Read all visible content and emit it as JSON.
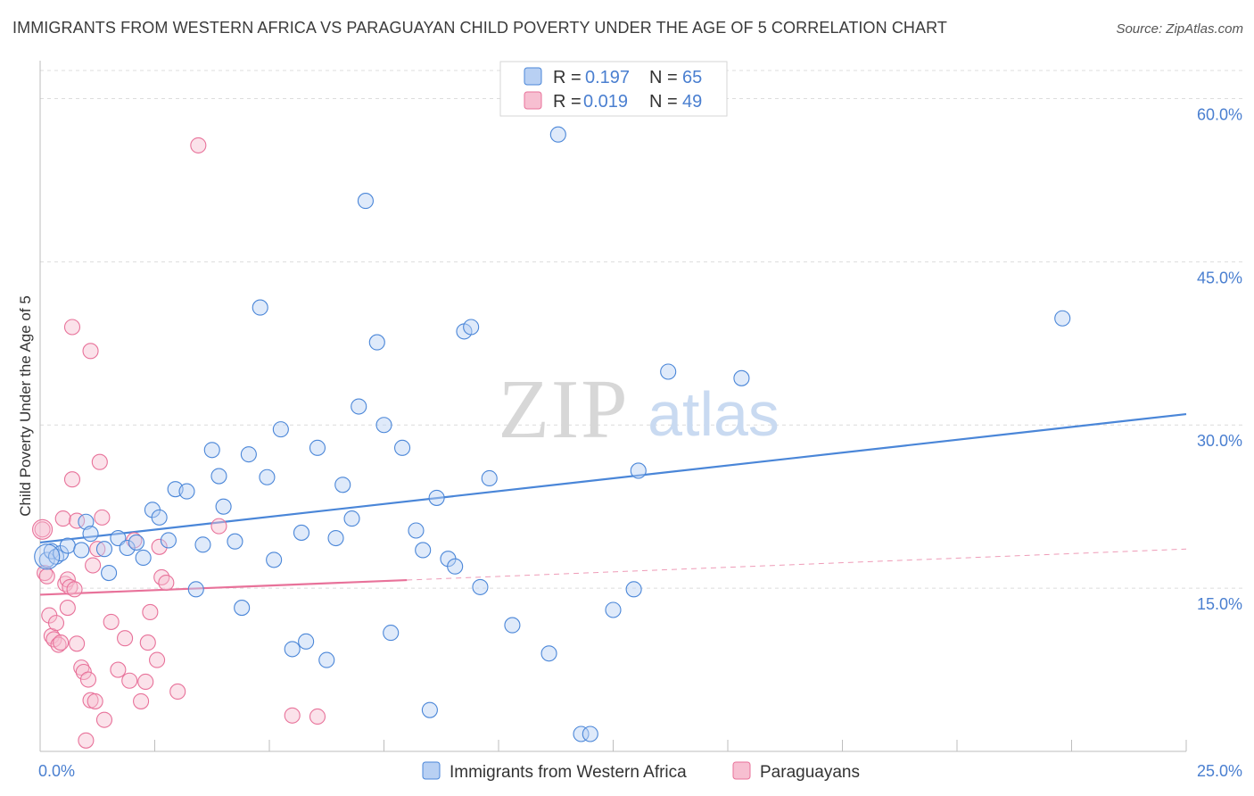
{
  "title": "IMMIGRANTS FROM WESTERN AFRICA VS PARAGUAYAN CHILD POVERTY UNDER THE AGE OF 5 CORRELATION CHART",
  "source": "Source: ZipAtlas.com",
  "watermark": {
    "zip": "ZIP",
    "atlas": "atlas"
  },
  "colors": {
    "blue": "#4a86d8",
    "blue_fill": "#b8d0f3",
    "pink": "#e8729a",
    "pink_fill": "#f7bfd1",
    "tick": "#4a7fd0"
  },
  "legend": {
    "r_label": "R =",
    "n_label": "N =",
    "rows": [
      {
        "r": "0.197",
        "n": "65"
      },
      {
        "r": "0.019",
        "n": "49"
      }
    ]
  },
  "chart_data": {
    "type": "scatter",
    "ylabel": "Child Poverty Under the Age of 5",
    "xlim": [
      0,
      25
    ],
    "ylim": [
      0,
      62.5
    ],
    "x_ticks": [
      {
        "value": 0,
        "label": "0.0%"
      },
      {
        "value": 25,
        "label": "25.0%"
      }
    ],
    "y_ticks": [
      {
        "value": 15,
        "label": "15.0%"
      },
      {
        "value": 30,
        "label": "30.0%"
      },
      {
        "value": 45,
        "label": "45.0%"
      },
      {
        "value": 60,
        "label": "60.0%"
      }
    ],
    "grid": true,
    "legend_position": "top-center",
    "series": [
      {
        "name": "Immigrants from Western Africa",
        "trend": {
          "x0": 0,
          "y0": 19.2,
          "x1": 25,
          "y1": 31.0,
          "solid_until": 25
        },
        "points": [
          [
            0.15,
            17.6
          ],
          [
            0.25,
            18.4
          ],
          [
            0.35,
            17.9
          ],
          [
            0.45,
            18.2
          ],
          [
            0.6,
            18.9
          ],
          [
            0.9,
            18.5
          ],
          [
            1.0,
            21.1
          ],
          [
            1.1,
            20.0
          ],
          [
            1.4,
            18.6
          ],
          [
            1.5,
            16.4
          ],
          [
            1.7,
            19.6
          ],
          [
            1.9,
            18.7
          ],
          [
            2.1,
            19.2
          ],
          [
            2.25,
            17.8
          ],
          [
            2.45,
            22.2
          ],
          [
            2.6,
            21.5
          ],
          [
            2.8,
            19.4
          ],
          [
            2.95,
            24.1
          ],
          [
            3.2,
            23.9
          ],
          [
            3.4,
            14.9
          ],
          [
            3.55,
            19.0
          ],
          [
            3.75,
            27.7
          ],
          [
            3.9,
            25.3
          ],
          [
            4.0,
            22.5
          ],
          [
            4.25,
            19.3
          ],
          [
            4.4,
            13.2
          ],
          [
            4.55,
            27.3
          ],
          [
            4.8,
            40.8
          ],
          [
            4.95,
            25.2
          ],
          [
            5.1,
            17.6
          ],
          [
            5.25,
            29.6
          ],
          [
            5.5,
            9.4
          ],
          [
            5.7,
            20.1
          ],
          [
            5.8,
            10.1
          ],
          [
            6.05,
            27.9
          ],
          [
            6.25,
            8.4
          ],
          [
            6.45,
            19.6
          ],
          [
            6.6,
            24.5
          ],
          [
            6.8,
            21.4
          ],
          [
            6.95,
            31.7
          ],
          [
            7.1,
            50.6
          ],
          [
            7.35,
            37.6
          ],
          [
            7.5,
            30.0
          ],
          [
            7.65,
            10.9
          ],
          [
            7.9,
            27.9
          ],
          [
            8.2,
            20.3
          ],
          [
            8.35,
            18.5
          ],
          [
            8.5,
            3.8
          ],
          [
            8.65,
            23.3
          ],
          [
            8.9,
            17.7
          ],
          [
            9.05,
            17.0
          ],
          [
            9.25,
            38.6
          ],
          [
            9.4,
            39.0
          ],
          [
            9.6,
            15.1
          ],
          [
            9.8,
            25.1
          ],
          [
            10.3,
            11.6
          ],
          [
            11.1,
            9.0
          ],
          [
            11.3,
            56.7
          ],
          [
            11.8,
            1.6
          ],
          [
            12.0,
            1.6
          ],
          [
            12.5,
            13.0
          ],
          [
            12.95,
            14.9
          ],
          [
            13.05,
            25.8
          ],
          [
            13.7,
            34.9
          ],
          [
            15.3,
            34.3
          ],
          [
            22.3,
            39.8
          ]
        ]
      },
      {
        "name": "Paraguayans",
        "trend": {
          "x0": 0,
          "y0": 14.4,
          "x1": 25,
          "y1": 18.6,
          "solid_until": 8.0
        },
        "points": [
          [
            0.05,
            20.4
          ],
          [
            0.1,
            16.4
          ],
          [
            0.15,
            16.1
          ],
          [
            0.2,
            12.5
          ],
          [
            0.25,
            10.6
          ],
          [
            0.3,
            10.3
          ],
          [
            0.35,
            11.8
          ],
          [
            0.4,
            9.8
          ],
          [
            0.45,
            10.0
          ],
          [
            0.5,
            21.4
          ],
          [
            0.55,
            15.4
          ],
          [
            0.6,
            13.2
          ],
          [
            0.6,
            15.8
          ],
          [
            0.65,
            15.1
          ],
          [
            0.7,
            39.0
          ],
          [
            0.75,
            14.9
          ],
          [
            0.7,
            25.0
          ],
          [
            0.8,
            9.9
          ],
          [
            0.8,
            21.2
          ],
          [
            0.9,
            7.7
          ],
          [
            0.95,
            7.3
          ],
          [
            1.0,
            1.0
          ],
          [
            1.05,
            6.6
          ],
          [
            1.1,
            4.7
          ],
          [
            1.1,
            36.8
          ],
          [
            1.15,
            17.1
          ],
          [
            1.2,
            4.6
          ],
          [
            1.25,
            18.6
          ],
          [
            1.3,
            26.6
          ],
          [
            1.35,
            21.5
          ],
          [
            1.4,
            2.9
          ],
          [
            1.55,
            11.9
          ],
          [
            1.7,
            7.5
          ],
          [
            1.85,
            10.4
          ],
          [
            1.95,
            6.5
          ],
          [
            2.05,
            19.4
          ],
          [
            2.2,
            4.6
          ],
          [
            2.3,
            6.4
          ],
          [
            2.35,
            10.0
          ],
          [
            2.4,
            12.8
          ],
          [
            2.55,
            8.4
          ],
          [
            2.6,
            18.8
          ],
          [
            2.65,
            16.0
          ],
          [
            2.75,
            15.5
          ],
          [
            3.0,
            5.5
          ],
          [
            3.45,
            55.7
          ],
          [
            3.9,
            20.7
          ],
          [
            5.5,
            3.3
          ],
          [
            6.05,
            3.2
          ]
        ]
      }
    ]
  }
}
